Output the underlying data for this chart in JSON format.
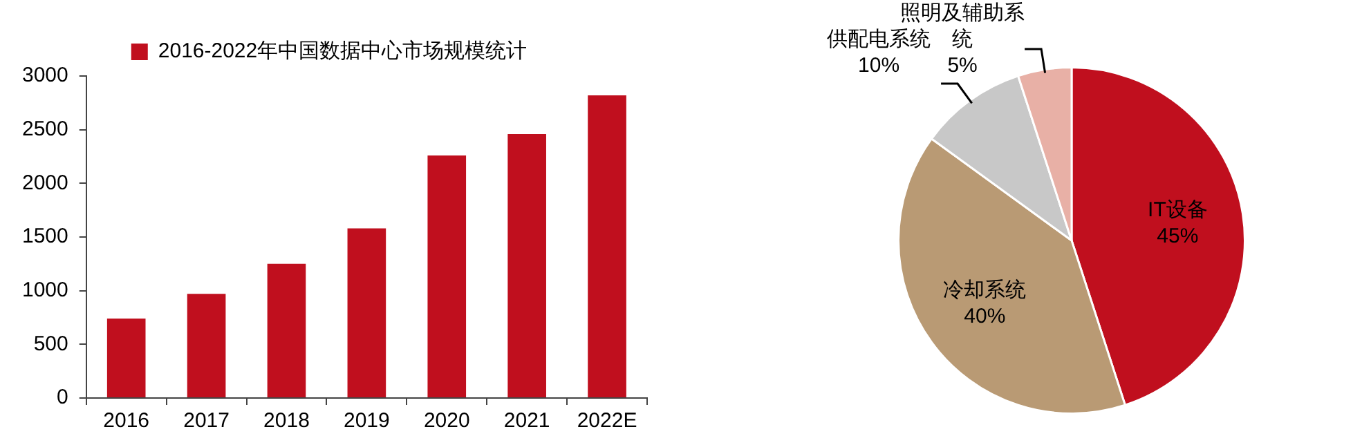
{
  "chart_data": [
    {
      "type": "bar",
      "categories": [
        "2016",
        "2017",
        "2018",
        "2019",
        "2020",
        "2021",
        "2022E"
      ],
      "series": [
        {
          "name": "2016-2022年中国数据中心市场规模统计",
          "color": "#c00f1e",
          "values": [
            740,
            970,
            1250,
            1580,
            2260,
            2460,
            2820
          ]
        }
      ],
      "ylim": [
        0,
        3000
      ],
      "yticks": [
        0,
        500,
        1000,
        1500,
        2000,
        2500,
        3000
      ],
      "grid": false,
      "legend": "top"
    },
    {
      "type": "pie",
      "categories": [
        "IT设备",
        "冷却系统",
        "供配电系统",
        "照明及辅助系统"
      ],
      "values": [
        45,
        40,
        10,
        5
      ],
      "colors": [
        "#c00f1e",
        "#b99a74",
        "#c8c8c8",
        "#e8b0a6"
      ],
      "value_labels": [
        "45%",
        "40%",
        "10%",
        "5%"
      ]
    }
  ]
}
